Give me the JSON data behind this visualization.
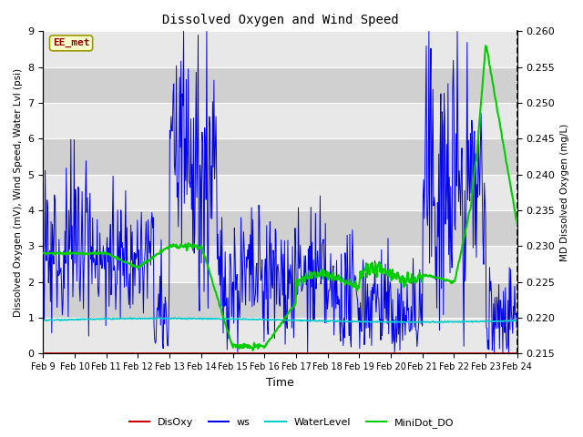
{
  "title": "Dissolved Oxygen and Wind Speed",
  "xlabel": "Time",
  "ylabel_left": "Dissolved Oxygen (mV), Wind Speed, Water Lvl (psi)",
  "ylabel_right": "MD Dissolved Oxygen (mg/L)",
  "annotation_text": "EE_met",
  "ylim_left": [
    0.0,
    9.0
  ],
  "ylim_right": [
    0.215,
    0.26
  ],
  "yticks_left": [
    0.0,
    1.0,
    2.0,
    3.0,
    4.0,
    5.0,
    6.0,
    7.0,
    8.0,
    9.0
  ],
  "yticks_right": [
    0.215,
    0.22,
    0.225,
    0.23,
    0.235,
    0.24,
    0.245,
    0.25,
    0.255,
    0.26
  ],
  "xtick_labels": [
    "Feb 9",
    "Feb 10",
    "Feb 11",
    "Feb 12",
    "Feb 13",
    "Feb 14",
    "Feb 15",
    "Feb 16",
    "Feb 17",
    "Feb 18",
    "Feb 19",
    "Feb 20",
    "Feb 21",
    "Feb 22",
    "Feb 23",
    "Feb 24"
  ],
  "color_disoxy": "#cc0000",
  "color_ws": "#0000ee",
  "color_waterlevel": "#00cccc",
  "color_minidot": "#00cc00",
  "bg_light": "#e8e8e8",
  "bg_dark": "#d0d0d0",
  "legend_labels": [
    "DisOxy",
    "ws",
    "WaterLevel",
    "MiniDot_DO"
  ],
  "grid_color": "#ffffff",
  "annotation_fg": "#8b0000",
  "annotation_bg": "#ffffcc",
  "annotation_edge": "#999900"
}
